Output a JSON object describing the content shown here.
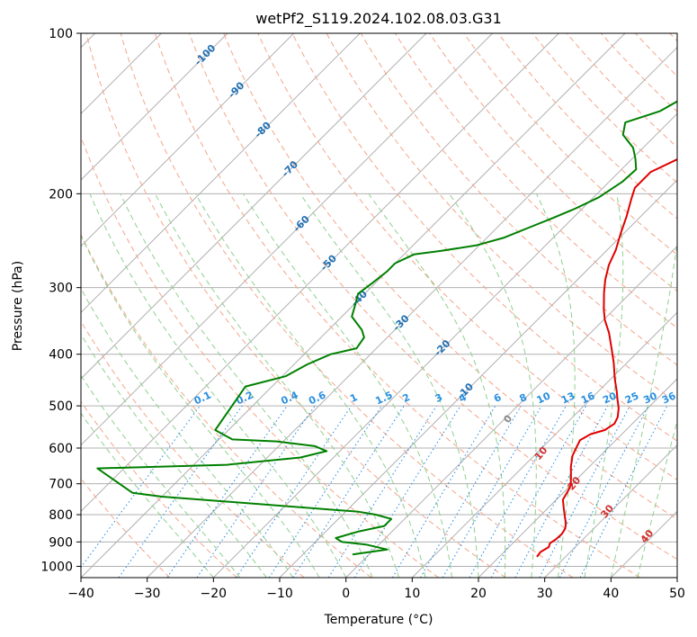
{
  "chart_data": {
    "type": "skew-t",
    "title": "wetPf2_S119.2024.102.08.03.G31",
    "xlabel": "Temperature (°C)",
    "ylabel": "Pressure (hPa)",
    "xlim": [
      -40,
      50
    ],
    "ylim": [
      1050,
      100
    ],
    "x_ticks": [
      -40,
      -30,
      -20,
      -10,
      0,
      10,
      20,
      30,
      40,
      50
    ],
    "y_ticks": [
      1000,
      900,
      800,
      700,
      600,
      500,
      400,
      300,
      200,
      100
    ],
    "grid": true,
    "colors": {
      "temperature": "#e00000",
      "dewpoint": "#008000",
      "isotherm": "#b0b0b0",
      "dry_adiabat": "#f4a58a",
      "moist_adiabat": "#8fd08f",
      "mixing_ratio": "#1e88e5",
      "isotherm_label": "#1f6fb4",
      "mixing_label": "#2a8fe0",
      "moist_label": "#d03030",
      "zero_label": "#888888"
    },
    "isotherm_labels": [
      {
        "text": "-100",
        "value": -100
      },
      {
        "text": "-90",
        "value": -90
      },
      {
        "text": "-80",
        "value": -80
      },
      {
        "text": "-70",
        "value": -70
      },
      {
        "text": "-60",
        "value": -60
      },
      {
        "text": "-50",
        "value": -50
      },
      {
        "text": "-40",
        "value": -40
      },
      {
        "text": "-30",
        "value": -30
      },
      {
        "text": "-20",
        "value": -20
      },
      {
        "text": "-10",
        "value": -10
      }
    ],
    "mixing_ratio_labels": [
      "0.1",
      "0.2",
      "0.4",
      "0.6",
      "1",
      "1.5",
      "2",
      "3",
      "4",
      "6",
      "8",
      "10",
      "13",
      "16",
      "20",
      "25",
      "30",
      "36"
    ],
    "mixing_ratio_values": [
      0.1,
      0.2,
      0.4,
      0.6,
      1,
      1.5,
      2,
      3,
      4,
      6,
      8,
      10,
      13,
      16,
      20,
      25,
      30,
      36
    ],
    "moist_adiabat_labels": [
      "0",
      "10",
      "20",
      "30",
      "40"
    ],
    "series": [
      {
        "variable": "temperature",
        "points": [
          [
            25.7,
            960
          ],
          [
            25.5,
            940
          ],
          [
            26.0,
            920
          ],
          [
            25.6,
            905
          ],
          [
            25.9,
            890
          ],
          [
            26.0,
            870
          ],
          [
            25.7,
            850
          ],
          [
            25.0,
            830
          ],
          [
            24.0,
            810
          ],
          [
            23.5,
            800
          ],
          [
            22.5,
            780
          ],
          [
            21.0,
            750
          ],
          [
            20.4,
            720
          ],
          [
            20.0,
            705
          ],
          [
            18.8,
            680
          ],
          [
            17.2,
            650
          ],
          [
            15.8,
            620
          ],
          [
            15.2,
            600
          ],
          [
            14.6,
            580
          ],
          [
            15.3,
            565
          ],
          [
            16.8,
            555
          ],
          [
            17.3,
            540
          ],
          [
            16.8,
            525
          ],
          [
            15.6,
            505
          ],
          [
            14.0,
            485
          ],
          [
            12.8,
            470
          ],
          [
            10.6,
            445
          ],
          [
            8.0,
            415
          ],
          [
            5.5,
            390
          ],
          [
            2.8,
            365
          ],
          [
            0.2,
            345
          ],
          [
            -1.5,
            330
          ],
          [
            -4.0,
            307
          ],
          [
            -5.8,
            290
          ],
          [
            -7.5,
            272
          ],
          [
            -8.7,
            255
          ],
          [
            -10.5,
            237
          ],
          [
            -12.2,
            220
          ],
          [
            -14.0,
            205
          ],
          [
            -15.2,
            195
          ],
          [
            -15.2,
            182
          ],
          [
            -13.0,
            172
          ],
          [
            -9.5,
            164
          ],
          [
            -6.0,
            155
          ],
          [
            -3.5,
            147
          ],
          [
            -2.0,
            140
          ],
          [
            -1.5,
            130
          ],
          [
            -1.7,
            120
          ],
          [
            -1.6,
            110
          ],
          [
            -1.0,
            100
          ]
        ]
      },
      {
        "variable": "dewpoint",
        "points": [
          [
            -2.5,
            950
          ],
          [
            2.0,
            930
          ],
          [
            -2.0,
            910
          ],
          [
            -6.0,
            900
          ],
          [
            -7.5,
            885
          ],
          [
            -5.0,
            860
          ],
          [
            -2.0,
            840
          ],
          [
            -2.0,
            815
          ],
          [
            -5.0,
            800
          ],
          [
            -8.0,
            790
          ],
          [
            -40.0,
            740
          ],
          [
            -45.0,
            728
          ],
          [
            -54.0,
            655
          ],
          [
            -35.0,
            645
          ],
          [
            -25.0,
            625
          ],
          [
            -22.0,
            608
          ],
          [
            -24.5,
            595
          ],
          [
            -31.0,
            583
          ],
          [
            -38.0,
            578
          ],
          [
            -42.0,
            555
          ],
          [
            -44.0,
            460
          ],
          [
            -39.5,
            440
          ],
          [
            -38.0,
            418
          ],
          [
            -36.0,
            400
          ],
          [
            -33.0,
            390
          ],
          [
            -33.5,
            372
          ],
          [
            -35.0,
            360
          ],
          [
            -38.5,
            340
          ],
          [
            -40.0,
            320
          ],
          [
            -41.0,
            308
          ],
          [
            -40.5,
            295
          ],
          [
            -40.0,
            280
          ],
          [
            -40.0,
            270
          ],
          [
            -38.5,
            260
          ],
          [
            -35.0,
            256
          ],
          [
            -30.5,
            250
          ],
          [
            -27.5,
            242
          ],
          [
            -25.3,
            232
          ],
          [
            -23.0,
            222
          ],
          [
            -21.0,
            213
          ],
          [
            -19.2,
            203
          ],
          [
            -18.0,
            190
          ],
          [
            -17.8,
            180
          ],
          [
            -19.5,
            172
          ],
          [
            -21.5,
            164
          ],
          [
            -25.0,
            155
          ],
          [
            -26.5,
            147
          ],
          [
            -23.0,
            140
          ],
          [
            -21.0,
            130
          ],
          [
            -21.2,
            120
          ],
          [
            -22.5,
            110
          ],
          [
            -23.2,
            100
          ]
        ]
      }
    ]
  }
}
